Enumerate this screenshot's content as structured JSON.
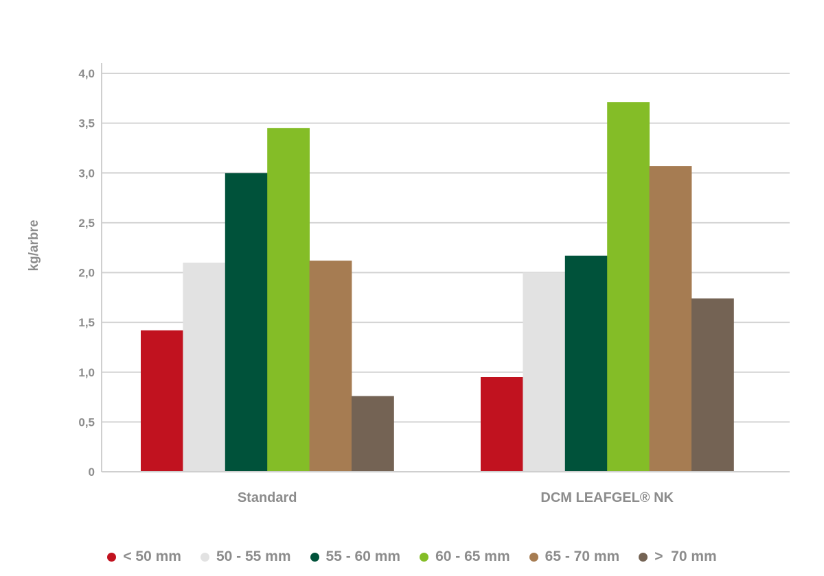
{
  "chart_data": {
    "type": "bar",
    "title": "",
    "xlabel": "",
    "ylabel": "kg/arbre",
    "ylim": [
      0,
      4.0
    ],
    "yticks": [
      "0",
      "0,5",
      "1,0",
      "1,5",
      "2,0",
      "2,5",
      "3,0",
      "3,5",
      "4,0"
    ],
    "ytick_values": [
      0,
      0.5,
      1.0,
      1.5,
      2.0,
      2.5,
      3.0,
      3.5,
      4.0
    ],
    "grid": true,
    "legend_position": "bottom",
    "categories": [
      "Standard",
      "DCM LEAFGEL® NK"
    ],
    "series": [
      {
        "name": "< 50 mm",
        "color": "#c1121f",
        "values": [
          1.42,
          0.95
        ]
      },
      {
        "name": "50 - 55 mm",
        "color": "#e2e2e2",
        "values": [
          2.1,
          2.0
        ]
      },
      {
        "name": "55 - 60 mm",
        "color": "#00523a",
        "values": [
          3.0,
          2.17
        ]
      },
      {
        "name": "60 - 65 mm",
        "color": "#84bd27",
        "values": [
          3.45,
          3.71
        ]
      },
      {
        "name": "65 - 70 mm",
        "color": "#a67c52",
        "values": [
          2.12,
          3.07
        ]
      },
      {
        "name": ">  70 mm",
        "color": "#746354",
        "values": [
          0.76,
          1.74
        ]
      }
    ]
  }
}
